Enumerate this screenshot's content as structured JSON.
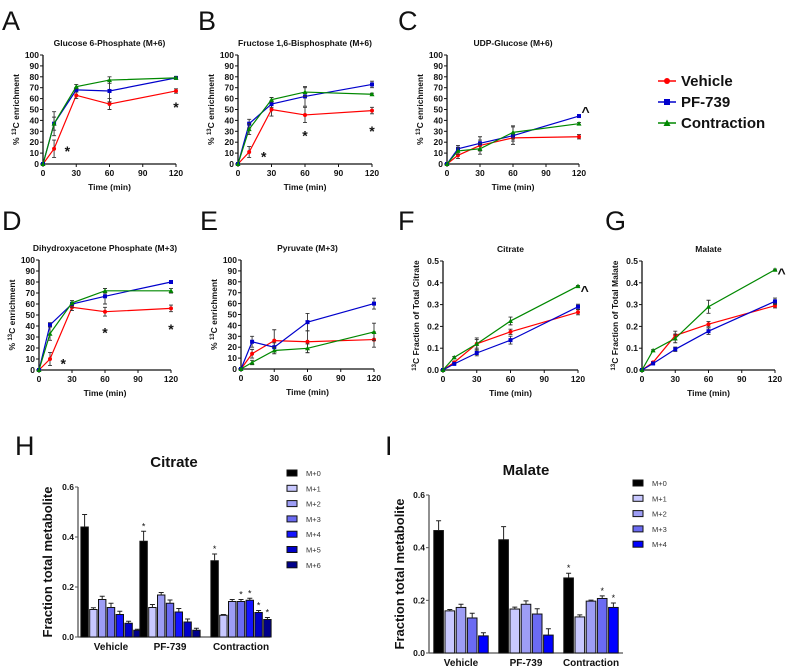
{
  "legend": {
    "series": [
      {
        "name": "Vehicle",
        "color": "#ff0000",
        "marker": "circle"
      },
      {
        "name": "PF-739",
        "color": "#0000cc",
        "marker": "square"
      },
      {
        "name": "Contraction",
        "color": "#008800",
        "marker": "triangle"
      }
    ]
  },
  "chart_data": [
    {
      "letter": "A",
      "type": "line",
      "title": "Glucose 6-Phosphate (M+6)",
      "xlabel": "Time (min)",
      "ylabel": {
        "pre": "% ",
        "sup": "13",
        "post": "C enrichment"
      },
      "x": [
        0,
        10,
        30,
        60,
        120
      ],
      "xticks": [
        "0",
        "30",
        "60",
        "90",
        "120"
      ],
      "xlim": [
        0,
        120
      ],
      "ylim": [
        0,
        100
      ],
      "yticks": [
        "0",
        "10",
        "20",
        "30",
        "40",
        "50",
        "60",
        "70",
        "80",
        "90",
        "100"
      ],
      "series": [
        {
          "name": "Vehicle",
          "values": [
            0,
            14,
            63,
            55,
            67
          ],
          "err": [
            0,
            8,
            3,
            5,
            2
          ]
        },
        {
          "name": "PF-739",
          "values": [
            0,
            37,
            68,
            67,
            79
          ],
          "err": [
            0,
            11,
            2,
            10,
            1
          ]
        },
        {
          "name": "Contraction",
          "values": [
            0,
            37,
            71,
            77,
            79
          ],
          "err": [
            0,
            6,
            2,
            3,
            1
          ]
        }
      ],
      "annotations": [
        {
          "x": 22,
          "y": 13,
          "text": "*"
        },
        {
          "x": 120,
          "y": 53,
          "text": "*"
        }
      ]
    },
    {
      "letter": "B",
      "type": "line",
      "title": "Fructose 1,6-Bisphosphate (M+6)",
      "xlabel": "Time (min)",
      "ylabel": {
        "pre": "% ",
        "sup": "13",
        "post": "C enrichment"
      },
      "x": [
        0,
        10,
        30,
        60,
        120
      ],
      "xticks": [
        "0",
        "30",
        "60",
        "90",
        "120"
      ],
      "xlim": [
        0,
        120
      ],
      "ylim": [
        0,
        100
      ],
      "yticks": [
        "0",
        "10",
        "20",
        "30",
        "40",
        "50",
        "60",
        "70",
        "80",
        "90",
        "100"
      ],
      "series": [
        {
          "name": "Vehicle",
          "values": [
            0,
            11,
            50,
            45,
            49
          ],
          "err": [
            0,
            5,
            6,
            7,
            3
          ]
        },
        {
          "name": "PF-739",
          "values": [
            0,
            37,
            55,
            62,
            73
          ],
          "err": [
            0,
            4,
            3,
            9,
            3
          ]
        },
        {
          "name": "Contraction",
          "values": [
            0,
            32,
            59,
            66,
            64
          ],
          "err": [
            0,
            5,
            2,
            4,
            1
          ]
        }
      ],
      "annotations": [
        {
          "x": 23,
          "y": 8,
          "text": "*"
        },
        {
          "x": 60,
          "y": 27,
          "text": "*"
        },
        {
          "x": 120,
          "y": 31,
          "text": "*"
        }
      ]
    },
    {
      "letter": "C",
      "type": "line",
      "title": "UDP-Glucose (M+6)",
      "xlabel": "Time (min)",
      "ylabel": {
        "pre": "% ",
        "sup": "13",
        "post": "C enrichment"
      },
      "x": [
        0,
        10,
        30,
        60,
        120
      ],
      "xticks": [
        "0",
        "30",
        "60",
        "90",
        "120"
      ],
      "xlim": [
        0,
        120
      ],
      "ylim": [
        0,
        100
      ],
      "yticks": [
        "0",
        "10",
        "20",
        "30",
        "40",
        "50",
        "60",
        "70",
        "80",
        "90",
        "100"
      ],
      "series": [
        {
          "name": "Vehicle",
          "values": [
            0,
            8,
            17,
            24,
            25
          ],
          "err": [
            0,
            3,
            5,
            3,
            2
          ]
        },
        {
          "name": "PF-739",
          "values": [
            0,
            14,
            19,
            26,
            44
          ],
          "err": [
            0,
            3,
            6,
            8,
            1
          ]
        },
        {
          "name": "Contraction",
          "values": [
            0,
            12,
            14,
            29,
            37
          ],
          "err": [
            0,
            3,
            5,
            6,
            1
          ]
        }
      ],
      "annotations": [
        {
          "x": 126,
          "y": 49,
          "text": "^"
        }
      ]
    },
    {
      "letter": "D",
      "type": "line",
      "title": "Dihydroxyacetone Phosphate (M+3)",
      "xlabel": "Time (min)",
      "ylabel": {
        "pre": "% ",
        "sup": "13",
        "post": "C enrichment"
      },
      "x": [
        0,
        10,
        30,
        60,
        120
      ],
      "xticks": [
        "0",
        "30",
        "60",
        "90",
        "120"
      ],
      "xlim": [
        0,
        120
      ],
      "ylim": [
        0,
        100
      ],
      "yticks": [
        "0",
        "10",
        "20",
        "30",
        "40",
        "50",
        "60",
        "70",
        "80",
        "90",
        "100"
      ],
      "series": [
        {
          "name": "Vehicle",
          "values": [
            0,
            10,
            57,
            53,
            56
          ],
          "err": [
            0,
            6,
            3,
            4,
            3
          ]
        },
        {
          "name": "PF-739",
          "values": [
            0,
            41,
            60,
            67,
            80
          ],
          "err": [
            0,
            2,
            3,
            7,
            1
          ]
        },
        {
          "name": "Contraction",
          "values": [
            0,
            33,
            61,
            72,
            72
          ],
          "err": [
            0,
            6,
            2,
            2,
            2
          ]
        }
      ],
      "annotations": [
        {
          "x": 22,
          "y": 7,
          "text": "*"
        },
        {
          "x": 60,
          "y": 35,
          "text": "*"
        },
        {
          "x": 120,
          "y": 38,
          "text": "*"
        }
      ]
    },
    {
      "letter": "E",
      "type": "line",
      "title": "Pyruvate (M+3)",
      "xlabel": "Time (min)",
      "ylabel": {
        "pre": "% ",
        "sup": "13",
        "post": "C enrichment"
      },
      "x": [
        0,
        10,
        30,
        60,
        120
      ],
      "xticks": [
        "0",
        "30",
        "60",
        "90",
        "120"
      ],
      "xlim": [
        0,
        120
      ],
      "ylim": [
        0,
        100
      ],
      "yticks": [
        "0",
        "10",
        "20",
        "30",
        "40",
        "50",
        "60",
        "70",
        "80",
        "90",
        "100"
      ],
      "series": [
        {
          "name": "Vehicle",
          "values": [
            0,
            14,
            26,
            25,
            27
          ],
          "err": [
            0,
            4,
            10,
            10,
            7
          ]
        },
        {
          "name": "PF-739",
          "values": [
            0,
            25,
            20,
            43,
            60
          ],
          "err": [
            0,
            5,
            4,
            8,
            5
          ]
        },
        {
          "name": "Contraction",
          "values": [
            0,
            6,
            17,
            19,
            34
          ],
          "err": [
            0,
            2,
            3,
            4,
            8
          ]
        }
      ],
      "annotations": []
    },
    {
      "letter": "F",
      "type": "line",
      "title": "Citrate",
      "xlabel": "Time (min)",
      "ylabel": {
        "pre": "",
        "sup": "13",
        "post": "C Fraction of  Total  Citrate"
      },
      "x": [
        0,
        10,
        30,
        60,
        120
      ],
      "xticks": [
        "0",
        "30",
        "60",
        "90",
        "120"
      ],
      "xlim": [
        0,
        120
      ],
      "ylim": [
        0,
        0.5
      ],
      "yticks": [
        "0.0",
        "0.1",
        "0.2",
        "0.3",
        "0.4",
        "0.5"
      ],
      "series": [
        {
          "name": "Vehicle",
          "values": [
            0,
            0.035,
            0.12,
            0.175,
            0.265
          ],
          "err": [
            0,
            0.005,
            0.02,
            0.012,
            0.012
          ]
        },
        {
          "name": "PF-739",
          "values": [
            0,
            0.028,
            0.078,
            0.137,
            0.29
          ],
          "err": [
            0,
            0.004,
            0.013,
            0.018,
            0.012
          ]
        },
        {
          "name": "Contraction",
          "values": [
            0,
            0.058,
            0.12,
            0.225,
            0.385
          ],
          "err": [
            0,
            0.004,
            0.027,
            0.018,
            0.003
          ]
        }
      ],
      "annotations": [
        {
          "x": 126,
          "y": 0.37,
          "text": "^"
        }
      ]
    },
    {
      "letter": "G",
      "type": "line",
      "title": "Malate",
      "xlabel": "Time (min)",
      "ylabel": {
        "pre": "",
        "sup": "13",
        "post": "C Fraction of  Total  Malate"
      },
      "x": [
        0,
        10,
        30,
        60,
        120
      ],
      "xticks": [
        "0",
        "30",
        "60",
        "90",
        "120"
      ],
      "xlim": [
        0,
        120
      ],
      "ylim": [
        0,
        0.5
      ],
      "yticks": [
        "0.0",
        "0.1",
        "0.2",
        "0.3",
        "0.4",
        "0.5"
      ],
      "series": [
        {
          "name": "Vehicle",
          "values": [
            0,
            0.035,
            0.158,
            0.21,
            0.295
          ],
          "err": [
            0,
            0.004,
            0.02,
            0.012,
            0.01
          ]
        },
        {
          "name": "PF-739",
          "values": [
            0,
            0.03,
            0.095,
            0.178,
            0.315
          ],
          "err": [
            0,
            0.004,
            0.01,
            0.015,
            0.015
          ]
        },
        {
          "name": "Contraction",
          "values": [
            0,
            0.09,
            0.145,
            0.29,
            0.46
          ],
          "err": [
            0,
            0.003,
            0.02,
            0.03,
            0.003
          ]
        }
      ],
      "annotations": [
        {
          "x": 126,
          "y": 0.45,
          "text": "^"
        }
      ]
    },
    {
      "letter": "H",
      "type": "bar",
      "title": "Citrate",
      "ylabel": "Fraction total metabolite",
      "categories": [
        "Vehicle",
        "PF-739",
        "Contraction"
      ],
      "ylim": [
        0,
        0.6
      ],
      "yticks": [
        "0.0",
        "0.2",
        "0.4",
        "0.6"
      ],
      "legend_placement": "right",
      "series": [
        {
          "name": "M+0",
          "color": "#000000",
          "values": [
            0.44,
            0.383,
            0.305
          ],
          "err": [
            0.05,
            0.04,
            0.027
          ],
          "sig": [
            false,
            true,
            true
          ]
        },
        {
          "name": "M+1",
          "color": "#c8c8ff",
          "values": [
            0.11,
            0.118,
            0.087
          ],
          "err": [
            0.007,
            0.012,
            0.003
          ],
          "sig": [
            false,
            false,
            false
          ]
        },
        {
          "name": "M+2",
          "color": "#9d9df5",
          "values": [
            0.15,
            0.168,
            0.142
          ],
          "err": [
            0.013,
            0.01,
            0.008
          ],
          "sig": [
            false,
            false,
            false
          ]
        },
        {
          "name": "M+3",
          "color": "#6b6bf2",
          "values": [
            0.118,
            0.135,
            0.142
          ],
          "err": [
            0.017,
            0.013,
            0.008
          ],
          "sig": [
            false,
            false,
            true
          ]
        },
        {
          "name": "M+4",
          "color": "#1414ff",
          "values": [
            0.09,
            0.1,
            0.147
          ],
          "err": [
            0.013,
            0.014,
            0.008
          ],
          "sig": [
            false,
            false,
            true
          ]
        },
        {
          "name": "M+5",
          "color": "#0000c8",
          "values": [
            0.055,
            0.06,
            0.098
          ],
          "err": [
            0.008,
            0.012,
            0.008
          ],
          "sig": [
            false,
            false,
            true
          ]
        },
        {
          "name": "M+6",
          "color": "#00008a",
          "values": [
            0.027,
            0.027,
            0.07
          ],
          "err": [
            0.004,
            0.008,
            0.008
          ],
          "sig": [
            false,
            false,
            true
          ]
        }
      ]
    },
    {
      "letter": "I",
      "type": "bar",
      "title": "Malate",
      "ylabel": "Fraction total metabolite",
      "categories": [
        "Vehicle",
        "PF-739",
        "Contraction"
      ],
      "ylim": [
        0,
        0.6
      ],
      "yticks": [
        "0.0",
        "0.2",
        "0.4",
        "0.6"
      ],
      "legend_placement": "right",
      "series": [
        {
          "name": "M+0",
          "color": "#000000",
          "values": [
            0.465,
            0.43,
            0.285
          ],
          "err": [
            0.037,
            0.05,
            0.018
          ],
          "sig": [
            false,
            false,
            true
          ]
        },
        {
          "name": "M+1",
          "color": "#c8c8ff",
          "values": [
            0.16,
            0.167,
            0.137
          ],
          "err": [
            0.005,
            0.007,
            0.008
          ],
          "sig": [
            false,
            false,
            false
          ]
        },
        {
          "name": "M+2",
          "color": "#9d9df5",
          "values": [
            0.173,
            0.185,
            0.197
          ],
          "err": [
            0.012,
            0.013,
            0.004
          ],
          "sig": [
            false,
            false,
            false
          ]
        },
        {
          "name": "M+3",
          "color": "#6b6bf2",
          "values": [
            0.133,
            0.148,
            0.207
          ],
          "err": [
            0.018,
            0.02,
            0.01
          ],
          "sig": [
            false,
            false,
            true
          ]
        },
        {
          "name": "M+4",
          "color": "#0000ff",
          "values": [
            0.065,
            0.068,
            0.173
          ],
          "err": [
            0.012,
            0.024,
            0.017
          ],
          "sig": [
            false,
            false,
            true
          ]
        }
      ]
    }
  ]
}
